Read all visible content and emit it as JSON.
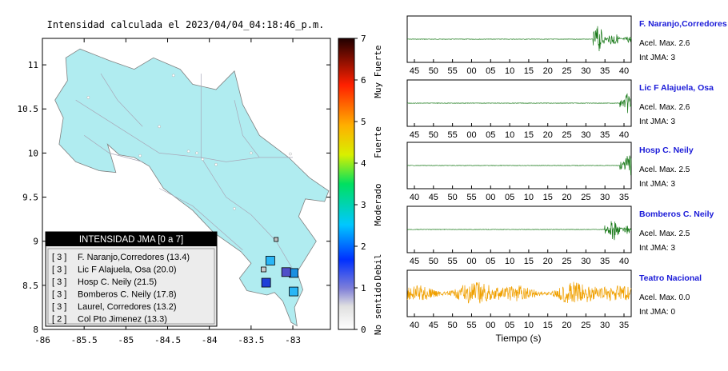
{
  "title": "Intensidad calculada el 2023/04/04_04:18:46_p.m.",
  "colorbar": {
    "ticks": [
      "0",
      "1",
      "2",
      "3",
      "4",
      "5",
      "6",
      "7"
    ],
    "labels": [
      "No sentido",
      "Debil",
      "Moderado",
      "Fuerte",
      "Muy Fuerte"
    ],
    "max": 7
  },
  "legend": {
    "title": "INTENSIDAD JMA [0 a 7]",
    "items": [
      {
        "level": "[ 3 ]",
        "text": "F. Naranjo,Corredores (13.4)"
      },
      {
        "level": "[ 3 ]",
        "text": "Lic F Alajuela, Osa (20.0)"
      },
      {
        "level": "[ 3 ]",
        "text": "Hosp C. Neily (21.5)"
      },
      {
        "level": "[ 3 ]",
        "text": "Bomberos C. Neily (17.8)"
      },
      {
        "level": "[ 3 ]",
        "text": "Laurel, Corredores (13.2)"
      },
      {
        "level": "[ 2 ]",
        "text": "Col Pto Jimenez (13.3)"
      }
    ]
  },
  "waveforms": [
    {
      "station": "F. Naranjo,Corredores",
      "acel": "Acel. Max. 2.6",
      "jma": "Int JMA: 3",
      "ticks": [
        "45",
        "50",
        "55",
        "00",
        "05",
        "10",
        "15",
        "20",
        "25",
        "30",
        "35",
        "40"
      ],
      "color": "#1a7a1a",
      "onset": 0.83
    },
    {
      "station": "Lic F Alajuela, Osa",
      "acel": "Acel. Max. 2.6",
      "jma": "Int JMA: 3",
      "ticks": [
        "45",
        "50",
        "55",
        "00",
        "05",
        "10",
        "15",
        "20",
        "25",
        "30",
        "35",
        "40"
      ],
      "color": "#1a7a1a",
      "onset": 0.95
    },
    {
      "station": "Hosp C. Neily",
      "acel": "Acel. Max. 2.5",
      "jma": "Int JMA: 3",
      "ticks": [
        "40",
        "45",
        "50",
        "55",
        "00",
        "05",
        "10",
        "15",
        "20",
        "25",
        "30",
        "35"
      ],
      "color": "#1a7a1a",
      "onset": 0.95
    },
    {
      "station": "Bomberos C. Neily",
      "acel": "Acel. Max. 2.5",
      "jma": "Int JMA: 3",
      "ticks": [
        "45",
        "50",
        "55",
        "00",
        "05",
        "10",
        "15",
        "20",
        "25",
        "30",
        "35",
        "40"
      ],
      "color": "#1a7a1a",
      "onset": 0.88
    },
    {
      "station": "Teatro Nacional",
      "acel": "Acel. Max. 0.0",
      "jma": "Int JMA: 0",
      "ticks": [
        "40",
        "45",
        "50",
        "55",
        "00",
        "05",
        "10",
        "15",
        "20",
        "25",
        "30",
        "35"
      ],
      "color": "#f0a000",
      "onset": 0.0
    }
  ],
  "time_label": "Tiempo (s)",
  "chart_data": [
    {
      "type": "scatter",
      "title": "Intensidad calculada el 2023/04/04_04:18:46_p.m.",
      "xlabel": "",
      "ylabel": "",
      "xlim": [
        -86,
        -82.55
      ],
      "ylim": [
        8,
        11.3
      ],
      "xticks": [
        "-86",
        "-85.5",
        "-85",
        "-84.5",
        "-84",
        "-83.5",
        "-83"
      ],
      "yticks": [
        "8",
        "8.5",
        "9",
        "9.5",
        "10",
        "10.5",
        "11"
      ],
      "grid": false,
      "stations": [
        {
          "name": "F. Naranjo,Corredores",
          "x": -83.27,
          "y": 8.78,
          "intensity": 3,
          "color": "#29b6f6"
        },
        {
          "name": "Lic F Alajuela, Osa",
          "x": -83.32,
          "y": 8.53,
          "intensity": 3,
          "color": "#1e3fd8"
        },
        {
          "name": "Hosp C. Neily",
          "x": -82.99,
          "y": 8.64,
          "intensity": 3,
          "color": "#1a8fe0"
        },
        {
          "name": "Bomberos C. Neily",
          "x": -82.99,
          "y": 8.43,
          "intensity": 3,
          "color": "#29b6f6"
        },
        {
          "name": "Laurel, Corredores",
          "x": -83.08,
          "y": 8.65,
          "intensity": 3,
          "color": "#5050c8"
        },
        {
          "name": "Col Pto Jimenez",
          "x": -83.35,
          "y": 8.68,
          "intensity": 2,
          "color": "#c8c8c8"
        },
        {
          "name": "",
          "x": -83.2,
          "y": 9.02,
          "intensity": 1,
          "color": "#c0c0c0"
        }
      ]
    }
  ]
}
